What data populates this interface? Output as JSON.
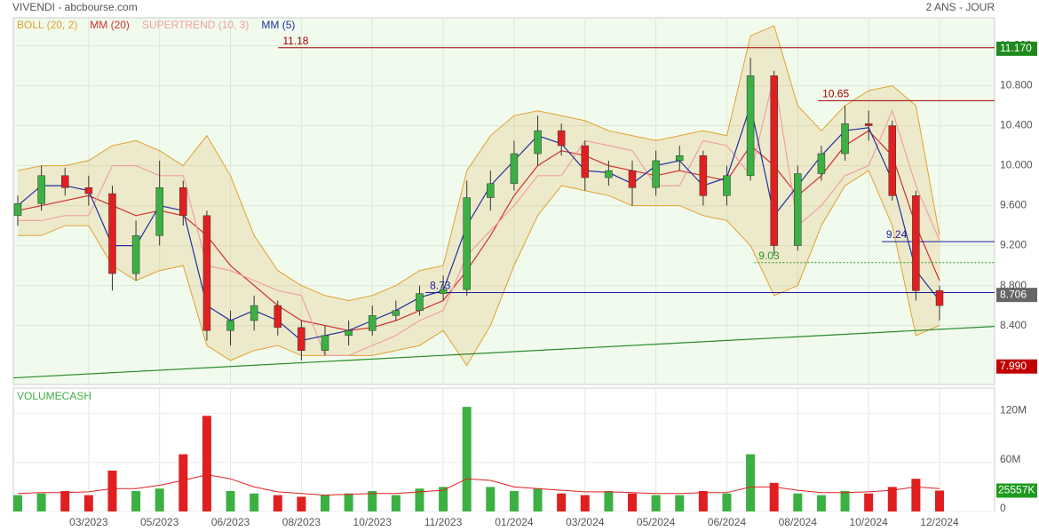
{
  "chart_data": {
    "type": "candlestick",
    "title": "VIVENDI - abcbourse.com",
    "period": "2 ANS - JOUR",
    "categories": [
      null,
      null,
      null,
      "03/2023",
      null,
      null,
      "05/2023",
      null,
      null,
      "06/2023",
      null,
      null,
      "08/2023",
      null,
      null,
      "10/2023",
      null,
      null,
      "11/2023",
      null,
      null,
      "01/2024",
      null,
      null,
      "03/2024",
      null,
      null,
      "05/2024",
      null,
      null,
      "06/2024",
      null,
      null,
      "08/2024",
      null,
      null,
      "10/2024",
      null,
      null,
      "12/2024"
    ],
    "open": [
      9.5,
      9.62,
      9.9,
      9.78,
      9.72,
      8.92,
      9.3,
      9.78,
      9.5,
      8.35,
      8.45,
      8.6,
      8.38,
      8.15,
      8.3,
      8.35,
      8.5,
      8.55,
      8.72,
      8.76,
      9.68,
      9.82,
      10.12,
      10.35,
      10.2,
      9.88,
      9.95,
      9.78,
      10.05,
      10.1,
      9.7,
      9.9,
      10.9,
      9.2,
      9.92,
      10.12,
      10.42,
      10.4,
      9.7,
      8.75
    ],
    "high": [
      9.7,
      10.0,
      9.98,
      9.9,
      9.8,
      9.45,
      10.05,
      9.85,
      9.55,
      8.55,
      8.7,
      8.65,
      8.45,
      8.4,
      8.45,
      8.6,
      8.65,
      8.8,
      8.9,
      9.85,
      9.95,
      10.25,
      10.5,
      10.42,
      10.25,
      10.05,
      10.05,
      10.15,
      10.2,
      10.15,
      10.0,
      11.08,
      10.95,
      10.0,
      10.2,
      10.6,
      10.55,
      10.45,
      9.75,
      8.8
    ],
    "low": [
      9.4,
      9.55,
      9.7,
      9.6,
      8.75,
      8.85,
      9.2,
      9.4,
      8.25,
      8.2,
      8.35,
      8.3,
      8.05,
      8.1,
      8.2,
      8.3,
      8.45,
      8.5,
      8.65,
      8.7,
      9.55,
      9.75,
      10.0,
      10.1,
      9.75,
      9.8,
      9.6,
      9.7,
      9.95,
      9.6,
      9.6,
      9.85,
      9.1,
      9.15,
      9.85,
      10.05,
      10.25,
      9.65,
      8.65,
      8.45
    ],
    "close": [
      9.62,
      9.9,
      9.78,
      9.72,
      8.92,
      9.3,
      9.78,
      9.5,
      8.35,
      8.45,
      8.6,
      8.38,
      8.15,
      8.3,
      8.35,
      8.5,
      8.55,
      8.72,
      8.76,
      9.68,
      9.82,
      10.12,
      10.35,
      10.2,
      9.88,
      9.95,
      9.78,
      10.05,
      10.1,
      9.7,
      9.9,
      10.9,
      9.2,
      9.92,
      10.12,
      10.42,
      10.4,
      9.7,
      8.75,
      8.6
    ],
    "up_color": "#3cb043",
    "down_color": "#e02020",
    "ylim": [
      7.81,
      11.48
    ],
    "yticks": [
      {
        "value": 8.4,
        "label": "8.400"
      },
      {
        "value": 8.8,
        "label": "8.800"
      },
      {
        "value": 9.2,
        "label": "9.200"
      },
      {
        "value": 9.6,
        "label": "9.600"
      },
      {
        "value": 10.0,
        "label": "10.000"
      },
      {
        "value": 10.4,
        "label": "10.400"
      },
      {
        "value": 10.8,
        "label": "10.800"
      },
      {
        "value": 11.2,
        "label": "11.200"
      }
    ],
    "grid": true,
    "series": [
      {
        "name": "BOLL (20, 2)",
        "color": "#e0a030",
        "upper": [
          9.95,
          10.0,
          10.0,
          10.05,
          10.2,
          10.25,
          10.15,
          10.0,
          10.3,
          9.9,
          9.3,
          8.95,
          8.8,
          8.7,
          8.65,
          8.7,
          8.8,
          8.95,
          9.0,
          9.95,
          10.3,
          10.5,
          10.55,
          10.5,
          10.45,
          10.35,
          10.3,
          10.25,
          10.3,
          10.35,
          10.3,
          11.3,
          11.4,
          10.6,
          10.35,
          10.6,
          10.75,
          10.8,
          10.6,
          9.3
        ],
        "lower": [
          9.3,
          9.3,
          9.4,
          9.4,
          9.0,
          8.85,
          8.95,
          9.0,
          8.2,
          8.05,
          8.15,
          8.2,
          8.1,
          8.1,
          8.1,
          8.1,
          8.15,
          8.2,
          8.35,
          8.0,
          8.4,
          9.0,
          9.5,
          9.8,
          9.75,
          9.7,
          9.6,
          9.6,
          9.6,
          9.5,
          9.45,
          9.2,
          8.7,
          8.8,
          9.4,
          9.8,
          9.95,
          9.4,
          8.3,
          8.4
        ]
      },
      {
        "name": "MM (20)",
        "color": "#d03030",
        "values": [
          9.55,
          9.6,
          9.65,
          9.7,
          9.6,
          9.5,
          9.55,
          9.5,
          9.3,
          9.0,
          8.8,
          8.6,
          8.45,
          8.4,
          8.35,
          8.38,
          8.45,
          8.55,
          8.65,
          8.95,
          9.3,
          9.7,
          10.0,
          10.15,
          10.1,
          10.0,
          9.95,
          9.9,
          9.95,
          9.9,
          9.85,
          10.2,
          10.0,
          9.7,
          9.9,
          10.2,
          10.35,
          10.1,
          9.4,
          8.85
        ]
      },
      {
        "name": "SUPERTREND (10, 3)",
        "color": "#f0a0a0",
        "values": [
          9.45,
          9.45,
          9.5,
          9.5,
          10.0,
          10.0,
          9.9,
          9.9,
          9.0,
          8.95,
          8.85,
          8.75,
          8.7,
          8.1,
          8.1,
          8.2,
          8.3,
          8.45,
          8.55,
          9.1,
          9.35,
          9.6,
          9.9,
          9.9,
          10.25,
          10.2,
          10.15,
          9.8,
          9.8,
          10.25,
          10.2,
          9.9,
          10.9,
          9.4,
          9.6,
          9.9,
          10.0,
          10.55,
          9.8,
          9.25
        ]
      },
      {
        "name": "MM (5)",
        "color": "#2030a0",
        "values": [
          9.6,
          9.8,
          9.8,
          9.75,
          9.2,
          9.2,
          9.6,
          9.55,
          8.6,
          8.45,
          8.55,
          8.45,
          8.25,
          8.3,
          8.35,
          8.45,
          8.55,
          8.68,
          8.75,
          9.4,
          9.8,
          10.05,
          10.3,
          10.22,
          9.95,
          9.93,
          9.82,
          10.0,
          10.05,
          9.8,
          9.88,
          10.6,
          9.5,
          9.8,
          10.1,
          10.35,
          10.38,
          9.85,
          8.95,
          8.65
        ]
      }
    ],
    "levels": [
      {
        "value": 11.18,
        "label": "11.18",
        "color": "#a00000"
      },
      {
        "value": 10.65,
        "label": "10.65",
        "color": "#a00000"
      },
      {
        "value": 9.24,
        "label": "9.24",
        "color": "#1a1aa0"
      },
      {
        "value": 9.03,
        "label": "9.03",
        "color": "#2a9a2a"
      },
      {
        "value": 8.73,
        "label": "8.73",
        "color": "#1a1aa0"
      }
    ],
    "trendline": {
      "values": [
        7.876,
        8.391
      ],
      "color": "#2a8a2a"
    },
    "price_tags": [
      {
        "value": 11.17,
        "label": "11.170",
        "color": "#1e8a1e"
      },
      {
        "value": 8.706,
        "label": "8.706",
        "color": "#666666"
      },
      {
        "value": 7.99,
        "label": "7.990",
        "color": "#c00000"
      }
    ],
    "volume": {
      "title": "VOLUMECASH",
      "values": [
        20,
        22,
        25,
        20,
        50,
        25,
        28,
        70,
        117,
        25,
        22,
        20,
        18,
        20,
        22,
        25,
        20,
        28,
        30,
        128,
        30,
        25,
        28,
        22,
        20,
        25,
        22,
        20,
        20,
        25,
        22,
        70,
        35,
        22,
        20,
        25,
        22,
        30,
        40,
        25.557
      ],
      "average": [
        22,
        23,
        23,
        24,
        28,
        28,
        32,
        38,
        45,
        40,
        30,
        24,
        22,
        20,
        21,
        22,
        22,
        24,
        26,
        40,
        38,
        30,
        28,
        26,
        24,
        24,
        23,
        22,
        22,
        23,
        23,
        30,
        30,
        26,
        23,
        23,
        24,
        26,
        30,
        28
      ],
      "average_color": "#e02020",
      "ylim": [
        0,
        151
      ],
      "yticks": [
        0,
        {
          "value": 60,
          "label": "60M"
        },
        {
          "value": 120,
          "label": "120M"
        }
      ],
      "last_tag": {
        "value": 25.557,
        "label": "25557K",
        "color": "#1e9a1e"
      }
    }
  }
}
